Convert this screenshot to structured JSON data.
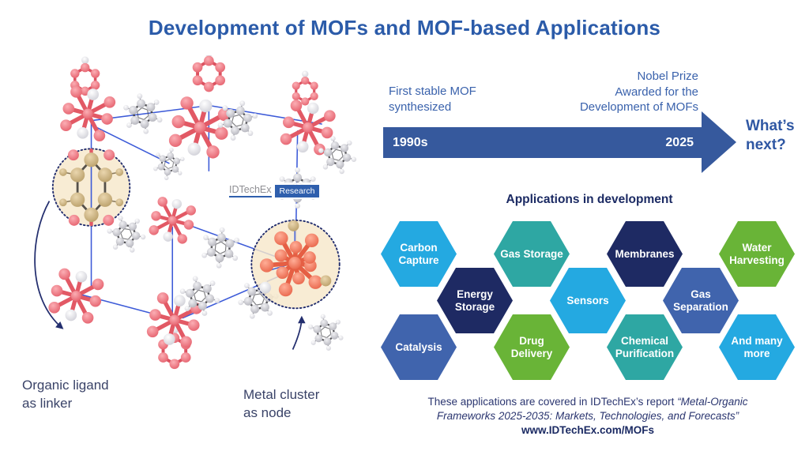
{
  "title": "Development of MOFs and MOF-based Applications",
  "colors": {
    "title_blue": "#2B5BA9",
    "timeline_arrow_blue": "#36599D",
    "heading_navy": "#1B2A63",
    "hex_cyan": "#24A9E1",
    "hex_teal": "#2EA7A3",
    "hex_navy": "#1E2A63",
    "hex_green": "#69B437",
    "hex_medium_blue": "#4064AD"
  },
  "molecule": {
    "logo_brand": "IDTechEx",
    "logo_suffix": "Research",
    "ligand_label_line1": "Organic ligand",
    "ligand_label_line2": "as linker",
    "cluster_label_line1": "Metal cluster",
    "cluster_label_line2": "as node"
  },
  "timeline": {
    "event_left_line1": "First stable MOF",
    "event_left_line2": "synthesized",
    "event_right_line1": "Nobel Prize",
    "event_right_line2": "Awarded for the",
    "event_right_line3": "Development of MOFs",
    "year_start": "1990s",
    "year_end": "2025",
    "whats_next": "What’s next?"
  },
  "applications": {
    "heading": "Applications in development",
    "hexagons": [
      {
        "label": "Carbon\nCapture",
        "color": "#24A9E1"
      },
      {
        "label": "Gas Storage",
        "color": "#2EA7A3"
      },
      {
        "label": "Membranes",
        "color": "#1E2A63"
      },
      {
        "label": "Water\nHarvesting",
        "color": "#69B437"
      },
      {
        "label": "Energy\nStorage",
        "color": "#1E2A63"
      },
      {
        "label": "Sensors",
        "color": "#24A9E1"
      },
      {
        "label": "Gas\nSeparation",
        "color": "#4064AD"
      },
      {
        "label": "Catalysis",
        "color": "#4064AD"
      },
      {
        "label": "Drug\nDelivery",
        "color": "#69B437"
      },
      {
        "label": "Chemical\nPurification",
        "color": "#2EA7A3"
      },
      {
        "label": "And many\nmore",
        "color": "#24A9E1"
      }
    ]
  },
  "footer": {
    "line1_regular": "These applications are covered in IDTechEx’s report ",
    "line1_italic": "“Metal-Organic",
    "line2_italic": "Frameworks 2025-2035: Markets, Technologies, and Forecasts”",
    "url": "www.IDTechEx.com/MOFs"
  }
}
